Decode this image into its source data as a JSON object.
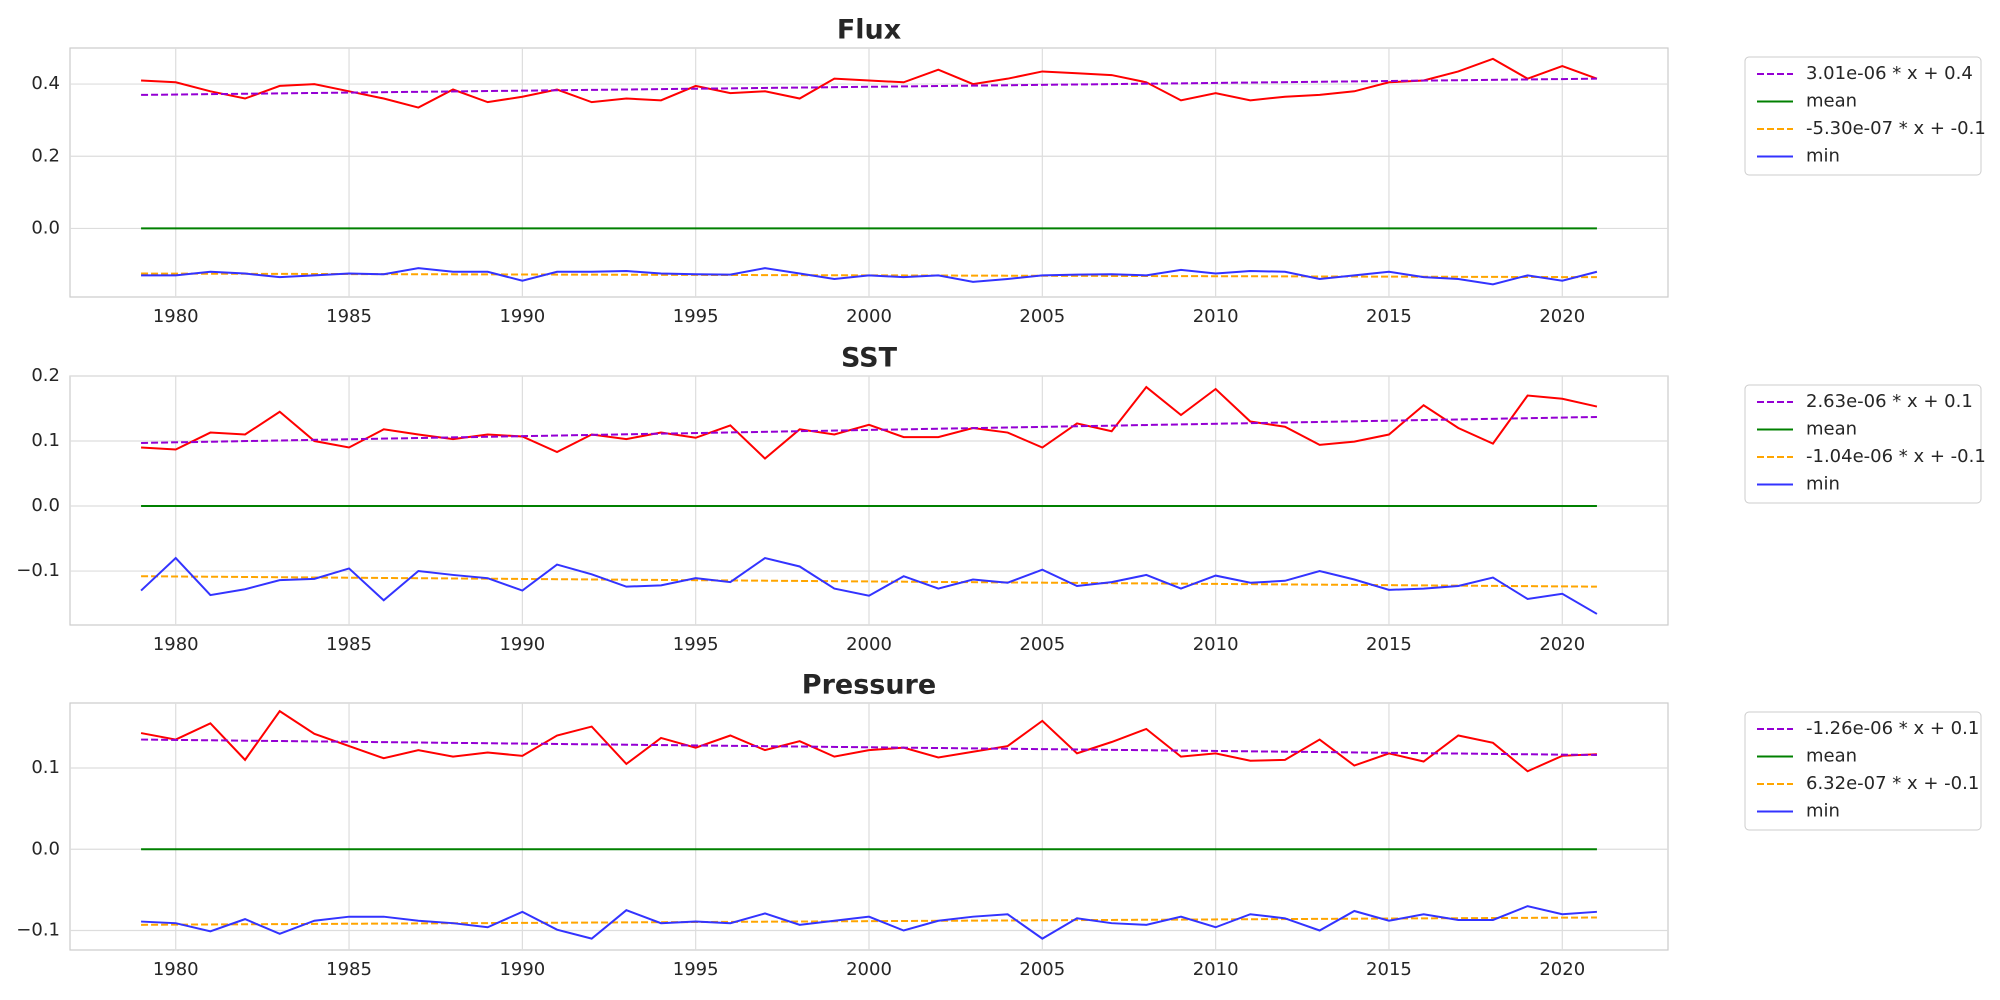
{
  "chart_data": [
    {
      "type": "line",
      "title": "Flux",
      "x": [
        1979,
        1980,
        1981,
        1982,
        1983,
        1984,
        1985,
        1986,
        1987,
        1988,
        1989,
        1990,
        1991,
        1992,
        1993,
        1994,
        1995,
        1996,
        1997,
        1998,
        1999,
        2000,
        2001,
        2002,
        2003,
        2004,
        2005,
        2006,
        2007,
        2008,
        2009,
        2010,
        2011,
        2012,
        2013,
        2014,
        2015,
        2016,
        2017,
        2018,
        2019,
        2020,
        2021
      ],
      "xlim": [
        1976.95,
        2023.05
      ],
      "xticks": [
        1980,
        1985,
        1990,
        1995,
        2000,
        2005,
        2010,
        2015,
        2020
      ],
      "ylim": [
        -0.19,
        0.5
      ],
      "yticks": [
        {
          "value": 0,
          "label": "0.0"
        },
        0.2,
        0.4
      ],
      "grid": true,
      "legend": "outside right",
      "series": [
        {
          "color": "red",
          "values": [
            0.41,
            0.405,
            0.38,
            0.36,
            0.395,
            0.4,
            0.38,
            0.36,
            0.335,
            0.385,
            0.35,
            0.365,
            0.385,
            0.35,
            0.36,
            0.355,
            0.395,
            0.375,
            0.38,
            0.36,
            0.415,
            0.41,
            0.405,
            0.44,
            0.4,
            0.415,
            0.435,
            0.43,
            0.425,
            0.405,
            0.355,
            0.375,
            0.355,
            0.365,
            0.37,
            0.38,
            0.405,
            0.41,
            0.435,
            0.47,
            0.415,
            0.45,
            0.415
          ]
        },
        {
          "name": "3.01e-06 * x +  0.4",
          "color": "#9400d3",
          "dashed": true,
          "x": [
            1979,
            2021
          ],
          "values": [
            0.37,
            0.415
          ]
        },
        {
          "name": "mean",
          "color": "green",
          "x": [
            1979,
            2021
          ],
          "values": [
            0,
            0
          ]
        },
        {
          "name": "-5.30e-07 * x + -0.1",
          "color": "orange",
          "dashed": true,
          "x": [
            1979,
            2021
          ],
          "values": [
            -0.125,
            -0.135
          ]
        },
        {
          "name": "min",
          "color": "#3333ff",
          "values": [
            -0.13,
            -0.13,
            -0.12,
            -0.125,
            -0.135,
            -0.13,
            -0.125,
            -0.127,
            -0.11,
            -0.12,
            -0.12,
            -0.145,
            -0.12,
            -0.12,
            -0.118,
            -0.125,
            -0.127,
            -0.128,
            -0.11,
            -0.125,
            -0.14,
            -0.13,
            -0.135,
            -0.13,
            -0.148,
            -0.14,
            -0.13,
            -0.128,
            -0.127,
            -0.13,
            -0.115,
            -0.125,
            -0.118,
            -0.12,
            -0.14,
            -0.13,
            -0.12,
            -0.135,
            -0.14,
            -0.155,
            -0.13,
            -0.145,
            -0.12
          ]
        }
      ]
    },
    {
      "type": "line",
      "title": "SST",
      "x": [
        1979,
        1980,
        1981,
        1982,
        1983,
        1984,
        1985,
        1986,
        1987,
        1988,
        1989,
        1990,
        1991,
        1992,
        1993,
        1994,
        1995,
        1996,
        1997,
        1998,
        1999,
        2000,
        2001,
        2002,
        2003,
        2004,
        2005,
        2006,
        2007,
        2008,
        2009,
        2010,
        2011,
        2012,
        2013,
        2014,
        2015,
        2016,
        2017,
        2018,
        2019,
        2020,
        2021
      ],
      "xlim": [
        1976.95,
        2023.05
      ],
      "xticks": [
        1980,
        1985,
        1990,
        1995,
        2000,
        2005,
        2010,
        2015,
        2020
      ],
      "ylim": [
        -0.183,
        0.2
      ],
      "yticks": [
        {
          "value": -0.1,
          "label": "−0.1"
        },
        {
          "value": 0,
          "label": "0.0"
        },
        0.1,
        0.2
      ],
      "grid": true,
      "legend": "outside right",
      "series": [
        {
          "color": "red",
          "values": [
            0.09,
            0.087,
            0.113,
            0.11,
            0.145,
            0.1,
            0.09,
            0.118,
            0.11,
            0.103,
            0.11,
            0.107,
            0.083,
            0.11,
            0.103,
            0.113,
            0.105,
            0.124,
            0.073,
            0.118,
            0.11,
            0.125,
            0.106,
            0.106,
            0.12,
            0.113,
            0.09,
            0.127,
            0.115,
            0.183,
            0.14,
            0.18,
            0.13,
            0.122,
            0.094,
            0.099,
            0.11,
            0.155,
            0.12,
            0.096,
            0.17,
            0.165,
            0.153
          ]
        },
        {
          "name": "2.63e-06 * x +  0.1",
          "color": "#9400d3",
          "dashed": true,
          "x": [
            1979,
            2021
          ],
          "values": [
            0.097,
            0.137
          ]
        },
        {
          "name": "mean",
          "color": "green",
          "x": [
            1979,
            2021
          ],
          "values": [
            0,
            0
          ]
        },
        {
          "name": "-1.04e-06 * x + -0.1",
          "color": "orange",
          "dashed": true,
          "x": [
            1979,
            2021
          ],
          "values": [
            -0.108,
            -0.124
          ]
        },
        {
          "name": "min",
          "color": "#3333ff",
          "values": [
            -0.13,
            -0.08,
            -0.137,
            -0.128,
            -0.114,
            -0.112,
            -0.096,
            -0.145,
            -0.1,
            -0.106,
            -0.111,
            -0.13,
            -0.09,
            -0.105,
            -0.124,
            -0.122,
            -0.111,
            -0.117,
            -0.08,
            -0.093,
            -0.127,
            -0.138,
            -0.108,
            -0.127,
            -0.113,
            -0.118,
            -0.098,
            -0.123,
            -0.117,
            -0.106,
            -0.127,
            -0.107,
            -0.118,
            -0.115,
            -0.1,
            -0.113,
            -0.129,
            -0.127,
            -0.123,
            -0.11,
            -0.143,
            -0.135,
            -0.166
          ]
        }
      ]
    },
    {
      "type": "line",
      "title": "Pressure",
      "x": [
        1979,
        1980,
        1981,
        1982,
        1983,
        1984,
        1985,
        1986,
        1987,
        1988,
        1989,
        1990,
        1991,
        1992,
        1993,
        1994,
        1995,
        1996,
        1997,
        1998,
        1999,
        2000,
        2001,
        2002,
        2003,
        2004,
        2005,
        2006,
        2007,
        2008,
        2009,
        2010,
        2011,
        2012,
        2013,
        2014,
        2015,
        2016,
        2017,
        2018,
        2019,
        2020,
        2021
      ],
      "xlim": [
        1976.95,
        2023.05
      ],
      "xticks": [
        1980,
        1985,
        1990,
        1995,
        2000,
        2005,
        2010,
        2015,
        2020
      ],
      "ylim": [
        -0.124,
        0.18
      ],
      "yticks": [
        {
          "value": -0.1,
          "label": "−0.1"
        },
        {
          "value": 0,
          "label": "0.0"
        },
        0.1
      ],
      "grid": true,
      "legend": "outside right",
      "series": [
        {
          "color": "red",
          "values": [
            0.143,
            0.135,
            0.155,
            0.11,
            0.17,
            0.142,
            0.127,
            0.112,
            0.122,
            0.114,
            0.119,
            0.115,
            0.14,
            0.151,
            0.105,
            0.137,
            0.125,
            0.14,
            0.122,
            0.133,
            0.114,
            0.122,
            0.125,
            0.113,
            0.12,
            0.127,
            0.158,
            0.118,
            0.132,
            0.148,
            0.114,
            0.118,
            0.109,
            0.11,
            0.135,
            0.103,
            0.118,
            0.108,
            0.14,
            0.131,
            0.096,
            0.115,
            0.117
          ]
        },
        {
          "name": "-1.26e-06 * x +  0.1",
          "color": "#9400d3",
          "dashed": true,
          "x": [
            1979,
            2021
          ],
          "values": [
            0.135,
            0.116
          ]
        },
        {
          "name": "mean",
          "color": "green",
          "x": [
            1979,
            2021
          ],
          "values": [
            0,
            0
          ]
        },
        {
          "name": "6.32e-07 * x + -0.1",
          "color": "orange",
          "dashed": true,
          "x": [
            1979,
            2021
          ],
          "values": [
            -0.093,
            -0.084
          ]
        },
        {
          "name": "min",
          "color": "#3333ff",
          "values": [
            -0.089,
            -0.091,
            -0.101,
            -0.086,
            -0.104,
            -0.088,
            -0.083,
            -0.083,
            -0.088,
            -0.091,
            -0.096,
            -0.077,
            -0.099,
            -0.11,
            -0.075,
            -0.091,
            -0.089,
            -0.091,
            -0.079,
            -0.093,
            -0.088,
            -0.083,
            -0.1,
            -0.088,
            -0.083,
            -0.08,
            -0.11,
            -0.085,
            -0.091,
            -0.093,
            -0.083,
            -0.096,
            -0.08,
            -0.085,
            -0.1,
            -0.076,
            -0.088,
            -0.08,
            -0.087,
            -0.087,
            -0.07,
            -0.08,
            -0.077
          ]
        }
      ]
    }
  ]
}
